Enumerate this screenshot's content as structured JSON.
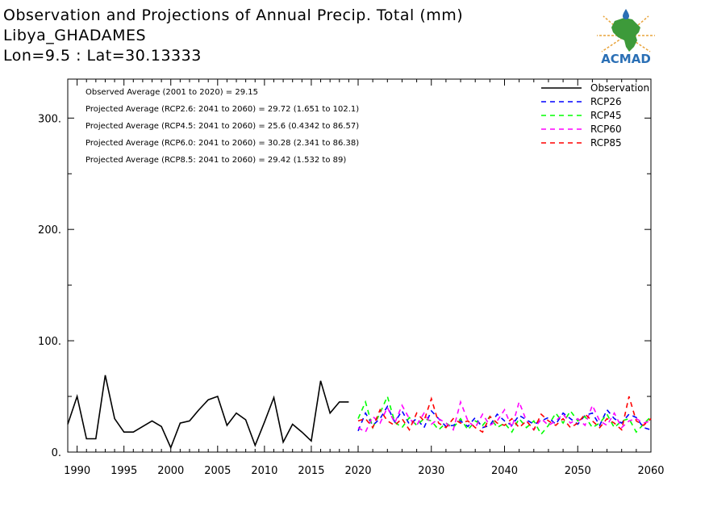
{
  "header": {
    "title": "Observation and Projections of Annual Precip. Total (mm)",
    "location": "Libya_GHADAMES",
    "coords": "Lon=9.5 : Lat=30.13333"
  },
  "logo": {
    "text": "ACMAD",
    "colors": {
      "orange": "#e8a33a",
      "green": "#3d9a3a",
      "blue": "#2a6fb5"
    }
  },
  "chart_data": {
    "type": "line",
    "xlim": [
      1989,
      2060
    ],
    "ylim": [
      0,
      335
    ],
    "yticks": [
      0,
      100,
      200,
      300
    ],
    "ytick_labels": [
      "0.",
      "100.",
      "200.",
      "300."
    ],
    "xticks": [
      1990,
      1995,
      2000,
      2005,
      2010,
      2015,
      2020,
      2030,
      2040,
      2050,
      2060
    ],
    "xtick_labels": [
      "1990",
      "1995",
      "2000",
      "2005",
      "2010",
      "2015",
      "2020",
      "2030",
      "2040",
      "2050",
      "2060"
    ],
    "annotations": [
      "Observed Average (2001 to 2020) = 29.15",
      "Projected Average (RCP2.6: 2041 to 2060) = 29.72 (1.651 to 102.1)",
      "Projected Average (RCP4.5: 2041 to 2060) = 25.6 (0.4342 to 86.57)",
      "Projected Average (RCP6.0: 2041 to 2060) = 30.28 (2.341 to 86.38)",
      "Projected Average (RCP8.5: 2041 to 2060) = 29.42 (1.532 to 89)"
    ],
    "legend_position": "top-right",
    "series": [
      {
        "name": "Observation",
        "color": "#000000",
        "dash": false,
        "x": [
          1989,
          1990,
          1991,
          1992,
          1993,
          1994,
          1995,
          1996,
          1997,
          1998,
          1999,
          2000,
          2001,
          2002,
          2003,
          2004,
          2005,
          2006,
          2007,
          2008,
          2009,
          2010,
          2011,
          2012,
          2013,
          2014,
          2015,
          2016,
          2017,
          2018,
          2019
        ],
        "values": [
          25,
          50,
          12,
          12,
          69,
          30,
          18,
          18,
          23,
          28,
          23,
          4,
          26,
          28,
          38,
          47,
          50,
          24,
          35,
          29,
          6,
          27,
          49,
          9,
          25,
          18,
          10,
          64,
          35,
          45,
          45
        ]
      },
      {
        "name": "RCP26",
        "color": "#0000ff",
        "dash": true,
        "x": [
          2020,
          2021,
          2022,
          2023,
          2024,
          2025,
          2026,
          2027,
          2028,
          2029,
          2030,
          2031,
          2032,
          2033,
          2034,
          2035,
          2036,
          2037,
          2038,
          2039,
          2040,
          2041,
          2042,
          2043,
          2044,
          2045,
          2046,
          2047,
          2048,
          2049,
          2050,
          2051,
          2052,
          2053,
          2054,
          2055,
          2056,
          2057,
          2058,
          2059,
          2060
        ],
        "values": [
          19,
          35,
          24,
          30,
          41,
          27,
          37,
          25,
          30,
          22,
          37,
          30,
          23,
          24,
          28,
          23,
          31,
          22,
          24,
          34,
          28,
          24,
          33,
          29,
          25,
          28,
          31,
          25,
          35,
          30,
          25,
          33,
          35,
          24,
          38,
          30,
          26,
          34,
          31,
          22,
          20
        ]
      },
      {
        "name": "RCP45",
        "color": "#00ff00",
        "dash": true,
        "x": [
          2020,
          2021,
          2022,
          2023,
          2024,
          2025,
          2026,
          2027,
          2028,
          2029,
          2030,
          2031,
          2032,
          2033,
          2034,
          2035,
          2036,
          2037,
          2038,
          2039,
          2040,
          2041,
          2042,
          2043,
          2044,
          2045,
          2046,
          2047,
          2048,
          2049,
          2050,
          2051,
          2052,
          2053,
          2054,
          2055,
          2056,
          2057,
          2058,
          2059,
          2060
        ],
        "values": [
          30,
          45,
          22,
          35,
          50,
          27,
          22,
          31,
          24,
          30,
          28,
          20,
          26,
          22,
          30,
          20,
          28,
          24,
          32,
          22,
          26,
          18,
          30,
          22,
          28,
          16,
          24,
          35,
          26,
          37,
          28,
          32,
          22,
          26,
          34,
          22,
          28,
          30,
          18,
          25,
          32
        ]
      },
      {
        "name": "RCP60",
        "color": "#ff00ff",
        "dash": true,
        "x": [
          2020,
          2021,
          2022,
          2023,
          2024,
          2025,
          2026,
          2027,
          2028,
          2029,
          2030,
          2031,
          2032,
          2033,
          2034,
          2035,
          2036,
          2037,
          2038,
          2039,
          2040,
          2041,
          2042,
          2043,
          2044,
          2045,
          2046,
          2047,
          2048,
          2049,
          2050,
          2051,
          2052,
          2053,
          2054,
          2055,
          2056,
          2057,
          2058,
          2059,
          2060
        ],
        "values": [
          22,
          18,
          32,
          26,
          40,
          26,
          42,
          30,
          24,
          35,
          25,
          30,
          26,
          20,
          45,
          28,
          22,
          34,
          24,
          28,
          38,
          22,
          45,
          28,
          20,
          30,
          24,
          28,
          34,
          26,
          30,
          24,
          42,
          28,
          24,
          35,
          22,
          28,
          30,
          26,
          28
        ]
      },
      {
        "name": "RCP85",
        "color": "#ff0000",
        "dash": true,
        "x": [
          2020,
          2021,
          2022,
          2023,
          2024,
          2025,
          2026,
          2027,
          2028,
          2029,
          2030,
          2031,
          2032,
          2033,
          2034,
          2035,
          2036,
          2037,
          2038,
          2039,
          2040,
          2041,
          2042,
          2043,
          2044,
          2045,
          2046,
          2047,
          2048,
          2049,
          2050,
          2051,
          2052,
          2053,
          2054,
          2055,
          2056,
          2057,
          2058,
          2059,
          2060
        ],
        "values": [
          28,
          30,
          22,
          38,
          28,
          24,
          30,
          20,
          35,
          28,
          48,
          26,
          22,
          30,
          26,
          28,
          22,
          18,
          32,
          26,
          24,
          30,
          22,
          28,
          20,
          34,
          28,
          24,
          30,
          22,
          26,
          34,
          28,
          22,
          30,
          26,
          20,
          50,
          28,
          24,
          30
        ]
      }
    ]
  }
}
